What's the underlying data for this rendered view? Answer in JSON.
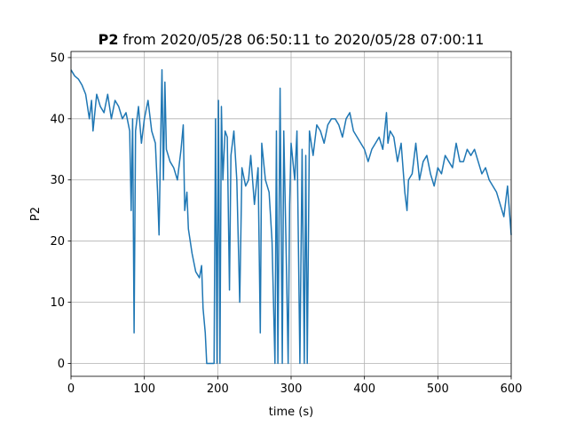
{
  "chart_data": {
    "type": "line",
    "title_bold": "P2",
    "title": "from 2020/05/28 06:50:11 to 2020/05/28 07:00:11",
    "xlabel": "time (s)",
    "ylabel": "P2",
    "x": [
      0,
      5,
      10,
      15,
      20,
      25,
      28,
      30,
      35,
      40,
      45,
      50,
      55,
      60,
      65,
      70,
      75,
      80,
      82,
      84,
      86,
      88,
      92,
      96,
      100,
      105,
      110,
      115,
      118,
      120,
      122,
      124,
      126,
      128,
      130,
      135,
      140,
      145,
      150,
      153,
      155,
      158,
      160,
      165,
      170,
      175,
      178,
      180,
      183,
      185,
      190,
      195,
      197,
      199,
      201,
      203,
      205,
      207,
      210,
      213,
      216,
      218,
      222,
      226,
      230,
      233,
      238,
      242,
      245,
      250,
      255,
      258,
      260,
      265,
      270,
      274,
      278,
      280,
      282,
      285,
      288,
      290,
      293,
      296,
      298,
      300,
      305,
      308,
      312,
      315,
      318,
      320,
      322,
      325,
      330,
      335,
      340,
      345,
      350,
      355,
      360,
      365,
      370,
      375,
      380,
      385,
      390,
      395,
      400,
      405,
      410,
      415,
      420,
      425,
      430,
      432,
      435,
      440,
      445,
      450,
      455,
      458,
      460,
      465,
      470,
      475,
      480,
      485,
      490,
      495,
      500,
      505,
      510,
      515,
      520,
      525,
      530,
      535,
      540,
      545,
      550,
      555,
      560,
      565,
      570,
      575,
      580,
      585,
      590,
      595,
      600
    ],
    "series": [
      {
        "name": "P2",
        "color": "#1f77b4",
        "values": [
          48,
          47,
          46.5,
          45.5,
          44,
          40,
          43,
          38,
          44,
          42,
          41,
          44,
          40,
          43,
          42,
          40,
          41,
          38,
          25,
          40,
          5,
          38,
          42,
          36,
          40,
          43,
          38,
          36,
          28,
          21,
          35,
          48,
          30,
          46,
          35,
          33,
          32,
          30,
          35,
          39,
          25,
          28,
          22,
          18,
          15,
          14,
          16,
          9,
          5,
          0,
          0,
          0,
          40,
          0,
          43,
          0,
          42,
          30,
          38,
          37,
          12,
          34,
          38,
          30,
          10,
          32,
          29,
          30,
          34,
          26,
          32,
          5,
          36,
          30,
          28,
          20,
          0,
          38,
          0,
          45,
          0,
          38,
          20,
          0,
          26,
          36,
          30,
          38,
          0,
          35,
          0,
          34,
          0,
          38,
          34,
          39,
          38,
          36,
          39,
          40,
          40,
          39,
          37,
          40,
          41,
          38,
          37,
          36,
          35,
          33,
          35,
          36,
          37,
          35,
          41,
          36,
          38,
          37,
          33,
          36,
          28,
          25,
          30,
          31,
          36,
          30,
          33,
          34,
          31,
          29,
          32,
          31,
          34,
          33,
          32,
          36,
          33,
          33,
          35,
          34,
          35,
          33,
          31,
          32,
          30,
          29,
          28,
          26,
          24,
          29,
          21
        ]
      }
    ],
    "xlim": [
      0,
      600
    ],
    "ylim": [
      -2.1,
      51
    ],
    "xticks": [
      0,
      100,
      200,
      300,
      400,
      500,
      600
    ],
    "yticks": [
      0,
      10,
      20,
      30,
      40,
      50
    ],
    "grid": true
  }
}
